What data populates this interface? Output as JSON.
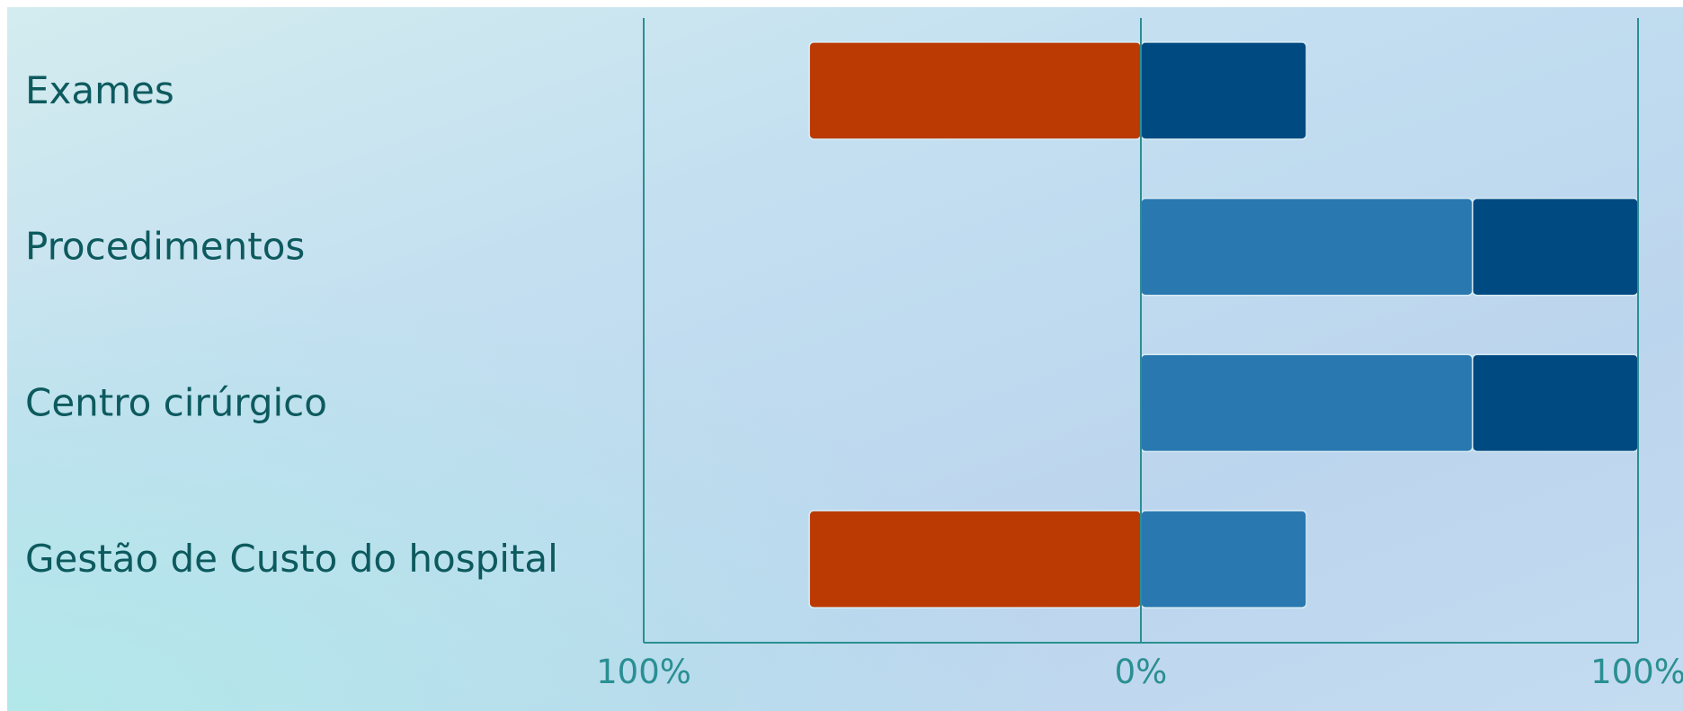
{
  "chart_data": {
    "type": "bar",
    "orientation": "horizontal",
    "stacked": "diverging",
    "categories": [
      "Exames",
      "Procedimentos",
      "Centro cirúrgico",
      "Gestão de Custo do hospital"
    ],
    "series": [
      {
        "color": "#bb3a03",
        "side": "negative",
        "values": [
          -66.7,
          0,
          0,
          -66.7
        ]
      },
      {
        "color": "#2a78b0",
        "side": "positive",
        "values": [
          0,
          66.7,
          66.7,
          33.3
        ]
      },
      {
        "color": "#004a82",
        "side": "positive",
        "values": [
          33.3,
          33.3,
          33.3,
          0
        ]
      }
    ],
    "xlim": [
      -100,
      100
    ],
    "xticks": [
      "100%",
      "0%",
      "100%"
    ],
    "grid": false,
    "legend": "none"
  }
}
